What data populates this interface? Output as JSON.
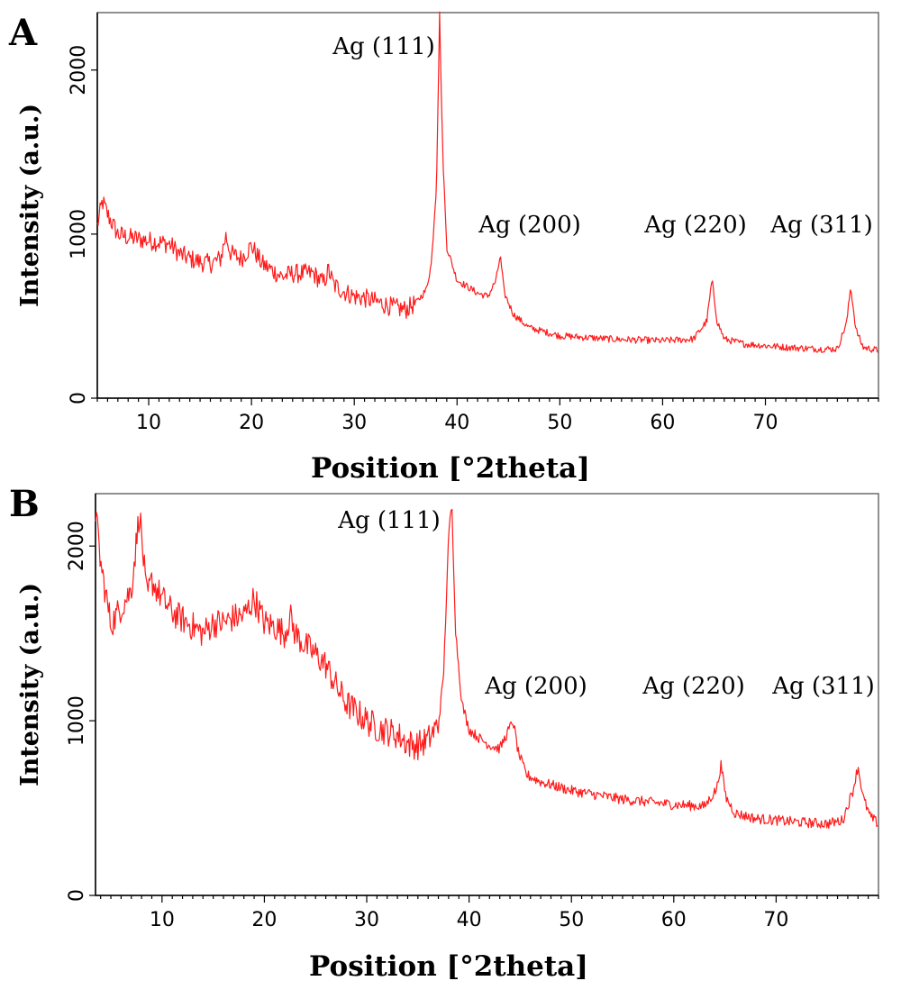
{
  "chart_data": [
    {
      "panel": "A",
      "type": "line",
      "ylabel": "Intensity (a.u.)",
      "xlabel": "Position [°2theta]",
      "xlim": [
        5,
        81
      ],
      "ylim": [
        0,
        2350
      ],
      "xticks": [
        10,
        20,
        30,
        40,
        50,
        60,
        70
      ],
      "yticks": [
        0,
        1000,
        2000
      ],
      "grid": false,
      "color": "#ff1a1a",
      "series": [
        {
          "x": [
            5,
            5.5,
            6,
            7,
            8,
            9,
            10,
            11,
            12,
            13,
            14,
            15,
            16,
            17,
            17.5,
            18,
            19,
            20,
            21,
            22,
            23,
            24,
            25,
            26,
            27,
            27.5,
            28,
            29,
            30,
            31,
            32,
            33,
            34,
            35,
            36,
            37,
            37.5,
            38,
            38.3,
            38.6,
            39,
            40,
            41,
            42,
            43,
            43.8,
            44.2,
            44.6,
            45.5,
            47,
            50,
            55,
            60,
            63,
            64.3,
            64.8,
            65.3,
            66,
            68,
            70,
            72,
            75,
            77,
            77.9,
            78.3,
            78.8,
            79.5,
            81
          ],
          "y": [
            1050,
            1200,
            1120,
            1000,
            980,
            970,
            960,
            950,
            940,
            880,
            850,
            830,
            820,
            850,
            990,
            880,
            850,
            930,
            820,
            780,
            740,
            760,
            760,
            760,
            700,
            780,
            690,
            650,
            620,
            610,
            590,
            570,
            550,
            540,
            580,
            660,
            820,
            1300,
            2340,
            1500,
            920,
            720,
            680,
            640,
            620,
            720,
            870,
            640,
            510,
            430,
            380,
            360,
            350,
            360,
            470,
            720,
            470,
            360,
            330,
            320,
            310,
            300,
            300,
            460,
            680,
            420,
            310,
            290
          ]
        }
      ],
      "annotations": [
        "Ag (111)",
        "Ag (200)",
        "Ag (220)",
        "Ag (311)"
      ]
    },
    {
      "panel": "B",
      "type": "line",
      "ylabel": "Intensity (a.u.)",
      "xlabel": "Position [°2theta]",
      "xlim": [
        3.5,
        80
      ],
      "ylim": [
        0,
        2300
      ],
      "xticks": [
        10,
        20,
        30,
        40,
        50,
        60,
        70
      ],
      "yticks": [
        0,
        1000,
        2000
      ],
      "grid": false,
      "color": "#ff1a1a",
      "series": [
        {
          "x": [
            3.5,
            4,
            5,
            6,
            7,
            7.8,
            8.5,
            9,
            10,
            11,
            12,
            13,
            14,
            15,
            16,
            17,
            18,
            19,
            20,
            21,
            22,
            22.5,
            23,
            24,
            25,
            26,
            27,
            28,
            29,
            30,
            31,
            32,
            33,
            34,
            35,
            36,
            37,
            37.5,
            38,
            38.3,
            38.7,
            39.3,
            40,
            41,
            42,
            43,
            43.9,
            44.3,
            44.8,
            45.6,
            47,
            50,
            55,
            60,
            63,
            64.2,
            64.6,
            65.1,
            66,
            68,
            70,
            72,
            75,
            76.5,
            77.5,
            78,
            78.5,
            79.2,
            80
          ],
          "y": [
            2200,
            1900,
            1550,
            1650,
            1750,
            2200,
            1700,
            1800,
            1700,
            1620,
            1580,
            1540,
            1500,
            1560,
            1560,
            1590,
            1600,
            1700,
            1560,
            1540,
            1500,
            1600,
            1500,
            1430,
            1380,
            1320,
            1200,
            1100,
            1050,
            1000,
            960,
            940,
            920,
            870,
            860,
            890,
            980,
            1250,
            2050,
            2250,
            1500,
            1100,
            950,
            900,
            860,
            840,
            950,
            1000,
            820,
            690,
            650,
            600,
            550,
            520,
            510,
            610,
            750,
            560,
            470,
            440,
            430,
            420,
            410,
            430,
            600,
            740,
            560,
            450,
            410
          ]
        }
      ],
      "annotations": [
        "Ag (111)",
        "Ag (200)",
        "Ag (220)",
        "Ag (311)"
      ]
    }
  ]
}
